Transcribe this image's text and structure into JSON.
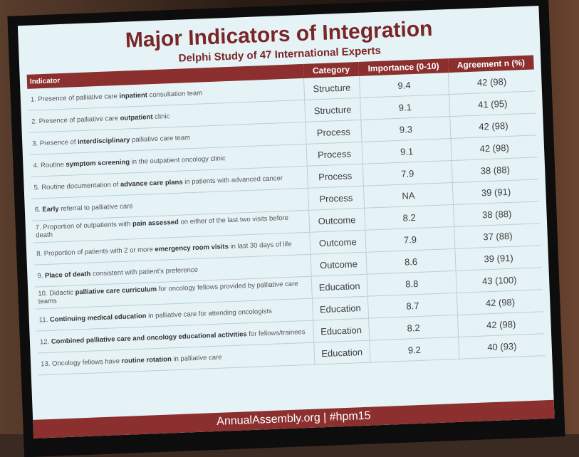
{
  "slide": {
    "title": "Major Indicators of Integration",
    "subtitle": "Delphi Study of 47 International Experts",
    "columns": [
      "Indicator",
      "Category",
      "Importance (0-10)",
      "Agreement n (%)"
    ],
    "rows": [
      {
        "indicator": [
          "1. Presence of palliative care ",
          "inpatient",
          " consultation team"
        ],
        "category": "Structure",
        "importance": "9.4",
        "agreement": "42 (98)"
      },
      {
        "indicator": [
          "2. Presence of palliative care ",
          "outpatient",
          " clinic"
        ],
        "category": "Structure",
        "importance": "9.1",
        "agreement": "41 (95)"
      },
      {
        "indicator": [
          "3. Presence of ",
          "interdisciplinary",
          " palliative care team"
        ],
        "category": "Process",
        "importance": "9.3",
        "agreement": "42 (98)"
      },
      {
        "indicator": [
          "4. Routine ",
          "symptom screening",
          " in the outpatient oncology clinic"
        ],
        "category": "Process",
        "importance": "9.1",
        "agreement": "42 (98)"
      },
      {
        "indicator": [
          "5. Routine documentation of ",
          "advance care plans",
          " in patients with advanced cancer"
        ],
        "category": "Process",
        "importance": "7.9",
        "agreement": "38 (88)"
      },
      {
        "indicator": [
          "6. ",
          "Early",
          " referral to palliative care"
        ],
        "category": "Process",
        "importance": "NA",
        "agreement": "39 (91)"
      },
      {
        "indicator": [
          "7. Proportion of outpatients with ",
          "pain assessed",
          " on either of the last two visits before death"
        ],
        "category": "Outcome",
        "importance": "8.2",
        "agreement": "38 (88)"
      },
      {
        "indicator": [
          "8. Proportion of patients with 2 or more ",
          "emergency room visits",
          " in last 30 days of life"
        ],
        "category": "Outcome",
        "importance": "7.9",
        "agreement": "37 (88)"
      },
      {
        "indicator": [
          "9. ",
          "Place of death",
          " consistent with patient's preference"
        ],
        "category": "Outcome",
        "importance": "8.6",
        "agreement": "39 (91)"
      },
      {
        "indicator": [
          "10. Didactic ",
          "palliative care curriculum",
          " for oncology fellows provided by palliative care teams"
        ],
        "category": "Education",
        "importance": "8.8",
        "agreement": "43 (100)"
      },
      {
        "indicator": [
          "11. ",
          "Continuing medical education",
          " in palliative care for attending oncologists"
        ],
        "category": "Education",
        "importance": "8.7",
        "agreement": "42 (98)"
      },
      {
        "indicator": [
          "12. ",
          "Combined palliative care and oncology educational activities",
          " for fellows/trainees"
        ],
        "category": "Education",
        "importance": "8.2",
        "agreement": "42 (98)"
      },
      {
        "indicator": [
          "13. Oncology fellows have ",
          "routine rotation",
          " in palliative care"
        ],
        "category": "Education",
        "importance": "9.2",
        "agreement": "40 (93)"
      }
    ],
    "footer": "AnnualAssembly.org | #hpm15"
  }
}
